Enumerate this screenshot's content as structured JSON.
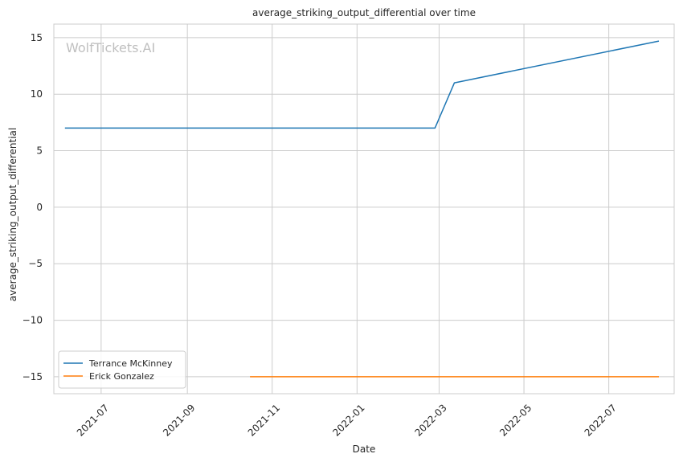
{
  "chart_data": {
    "type": "line",
    "title": "average_striking_output_differential over time",
    "xlabel": "Date",
    "ylabel": "average_striking_output_differential",
    "watermark": "WolfTickets.AI",
    "x_ticks": [
      "2021-07",
      "2021-09",
      "2021-11",
      "2022-01",
      "2022-03",
      "2022-05",
      "2022-07"
    ],
    "y_ticks": [
      15,
      10,
      5,
      0,
      -5,
      -10,
      -15
    ],
    "y_tick_labels": [
      "15",
      "10",
      "5",
      "0",
      "−5",
      "−10",
      "−15"
    ],
    "xlim": [
      "2021-05-28",
      "2022-08-17"
    ],
    "ylim": [
      -16.5,
      16.2
    ],
    "grid": true,
    "legend_position": "lower-left",
    "series": [
      {
        "name": "Terrance McKinney",
        "color": "#1f77b4",
        "x": [
          "2021-06-05",
          "2022-02-26",
          "2022-03-12",
          "2022-08-06"
        ],
        "y": [
          7.0,
          7.0,
          11.0,
          14.7
        ]
      },
      {
        "name": "Erick Gonzalez",
        "color": "#ff7f0e",
        "x": [
          "2021-10-16",
          "2022-08-06"
        ],
        "y": [
          -15.0,
          -15.0
        ]
      }
    ]
  }
}
